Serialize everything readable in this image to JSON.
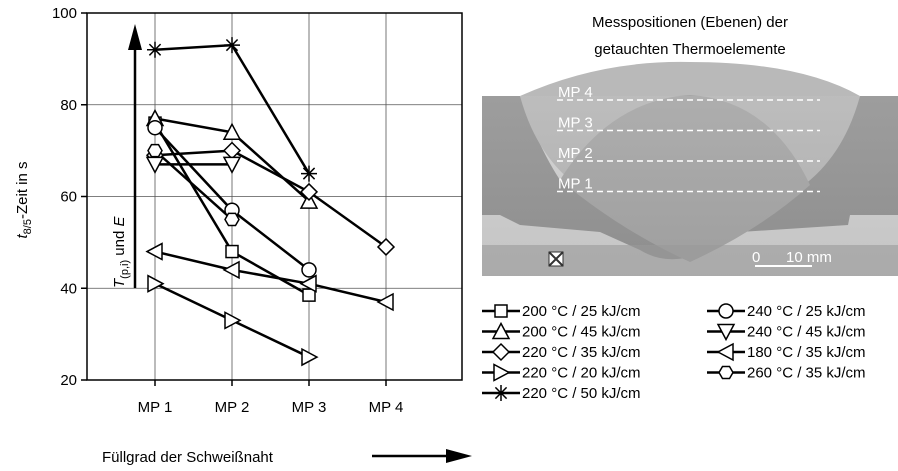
{
  "chart_data": {
    "type": "line",
    "ylabel": {
      "t": "t",
      "sub": "8/5",
      "rest": "-Zeit in s"
    },
    "xlabel": "Füllgrad der Schweißnaht",
    "annotation": {
      "t": "T",
      "sub": "(p,i)",
      "rest": " und ",
      "e": "E"
    },
    "categories": [
      "MP 1",
      "MP 2",
      "MP 3",
      "MP 4"
    ],
    "ylim": [
      20,
      100
    ],
    "yticks": [
      20,
      40,
      60,
      80,
      100
    ],
    "grid": true,
    "series": [
      {
        "name": "200 °C / 25 kJ/cm",
        "marker": "square",
        "color": "#000000",
        "values": [
          76,
          48,
          38.5,
          null
        ]
      },
      {
        "name": "200 °C / 45 kJ/cm",
        "marker": "triangle-up",
        "color": "#000000",
        "values": [
          77,
          74,
          59,
          null
        ]
      },
      {
        "name": "220 °C / 35 kJ/cm",
        "marker": "diamond",
        "color": "#000000",
        "values": [
          69,
          70,
          61,
          49
        ]
      },
      {
        "name": "220 °C / 20 kJ/cm",
        "marker": "triangle-right",
        "color": "#000000",
        "values": [
          41,
          33,
          25,
          null
        ]
      },
      {
        "name": "220 °C / 50 kJ/cm",
        "marker": "asterisk",
        "color": "#000000",
        "values": [
          92,
          93,
          65,
          null
        ]
      },
      {
        "name": "240 °C / 25 kJ/cm",
        "marker": "circle",
        "color": "#000000",
        "values": [
          75,
          57,
          44,
          null
        ]
      },
      {
        "name": "240 °C / 45 kJ/cm",
        "marker": "triangle-down",
        "color": "#000000",
        "values": [
          67,
          67,
          null,
          null
        ]
      },
      {
        "name": "180 °C / 35 kJ/cm",
        "marker": "triangle-left",
        "color": "#000000",
        "values": [
          48,
          44,
          41,
          37
        ]
      },
      {
        "name": "260 °C / 35 kJ/cm",
        "marker": "hexagon",
        "color": "#000000",
        "values": [
          70,
          55,
          null,
          null
        ]
      }
    ]
  },
  "image": {
    "title": [
      "Messpositionen (Ebenen) der",
      "getauchten Thermoelemente"
    ],
    "levels": [
      "MP 4",
      "MP 3",
      "MP 2",
      "MP 1"
    ],
    "scale_zero": "0",
    "scale_label": "10 mm"
  }
}
